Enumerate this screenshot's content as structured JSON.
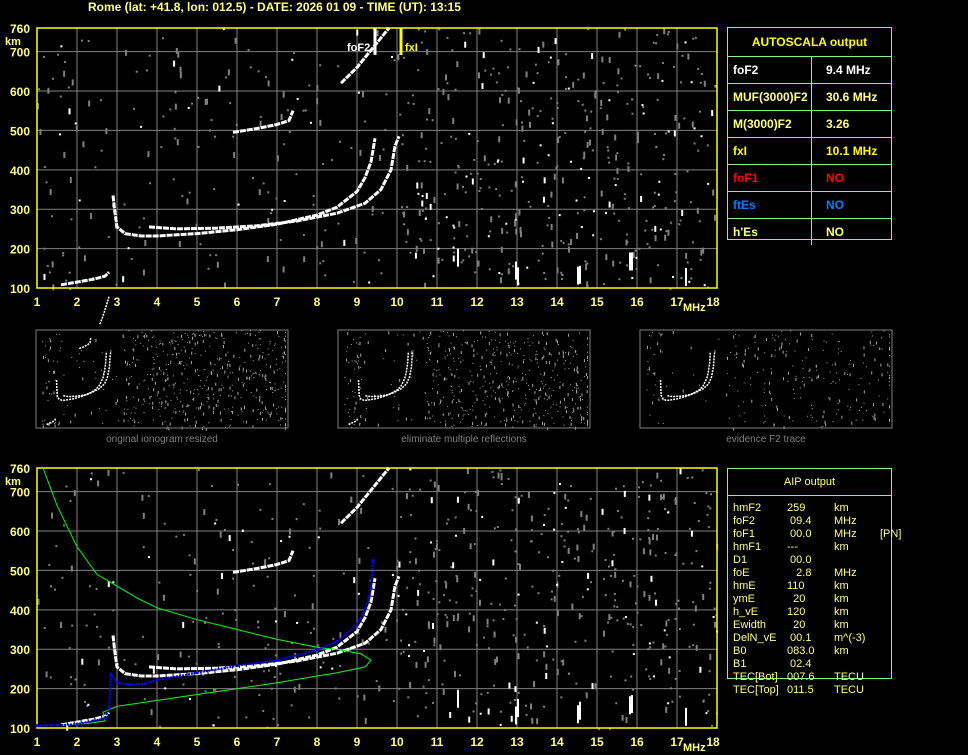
{
  "title": "Rome (lat: +41.8, lon: 012.5) - DATE: 2026 01 09 - TIME (UT): 13:15",
  "colors": {
    "axis": "#ffff00",
    "label": "#ffff80",
    "grid": "#808080",
    "echo": "#ffffff",
    "noise": "#808080",
    "table_border": "#80ff80",
    "aip_profile": "#00ff00",
    "aip_points": "#0000ff"
  },
  "autoscala": {
    "header": "AUTOSCALA output",
    "rows": [
      {
        "key": "foF2",
        "value": "9.4 MHz",
        "color": "#ffffff"
      },
      {
        "key": "MUF(3000)F2",
        "value": "30.6 MHz",
        "color": "#ffff80"
      },
      {
        "key": "M(3000)F2",
        "value": "3.26",
        "color": "#ffff80"
      },
      {
        "key": "fxI",
        "value": "10.1 MHz",
        "color": "#ffff00"
      },
      {
        "key": "foF1",
        "value": "NO",
        "color": "#ff0000"
      },
      {
        "key": "ftEs",
        "value": "NO",
        "color": "#0080ff"
      },
      {
        "key": "h'Es",
        "value": "NO",
        "color": "#ffff80"
      }
    ]
  },
  "aip": {
    "header": "AIP output",
    "rows": [
      [
        "hmF2",
        "259",
        "km",
        ""
      ],
      [
        "foF2",
        " 09.4",
        "MHz",
        ""
      ],
      [
        "foF1",
        " 00.0",
        "MHz",
        "[PN]"
      ],
      [
        "hmF1",
        "---",
        "km",
        ""
      ],
      [
        "D1",
        " 00.0",
        "",
        ""
      ],
      [
        "foE",
        "   2.8",
        "MHz",
        ""
      ],
      [
        "hmE",
        "110",
        "km",
        ""
      ],
      [
        "ymE",
        "  20",
        "km",
        ""
      ],
      [
        "h_vE",
        "120",
        "km",
        ""
      ],
      [
        "Ewidth",
        "  20",
        "km",
        ""
      ],
      [
        "DelN_vE",
        " 00.1",
        "m^(-3)",
        ""
      ],
      [
        "B0",
        "083.0",
        "km",
        ""
      ],
      [
        "B1",
        " 02.4",
        "",
        ""
      ],
      [
        "TEC[Bot]",
        "007.6",
        "TECU",
        ""
      ],
      [
        "TEC[Top]",
        "011.5",
        "TECU",
        ""
      ]
    ]
  },
  "thumbnails": [
    {
      "caption": "original ionogram resized"
    },
    {
      "caption": "eliminate multiple reflections"
    },
    {
      "caption": "evidence F2 trace"
    }
  ],
  "chart_data": [
    {
      "type": "scatter",
      "name": "ionogram",
      "xlabel": "MHz",
      "ylabel": "km",
      "xlim": [
        1,
        18
      ],
      "ylim": [
        100,
        760
      ],
      "xticks": [
        1,
        2,
        3,
        4,
        5,
        6,
        7,
        8,
        9,
        10,
        11,
        12,
        13,
        14,
        15,
        16,
        17,
        18
      ],
      "yticks": [
        100,
        200,
        300,
        400,
        500,
        600,
        700,
        760
      ],
      "grid": true,
      "markers": [
        {
          "label": "foF2",
          "x": 9.4,
          "color": "#ffffff"
        },
        {
          "label": "fxI",
          "x": 10.1,
          "color": "#ffff00"
        }
      ],
      "traces": [
        {
          "kind": "E",
          "points": [
            [
              1.6,
              108
            ],
            [
              2.0,
              115
            ],
            [
              2.4,
              122
            ],
            [
              2.7,
              130
            ],
            [
              2.8,
              140
            ]
          ]
        },
        {
          "kind": "F2-o",
          "points": [
            [
              2.9,
              335
            ],
            [
              2.95,
              290
            ],
            [
              3.0,
              255
            ],
            [
              3.2,
              238
            ],
            [
              3.6,
              232
            ],
            [
              4,
              232
            ],
            [
              5,
              238
            ],
            [
              6,
              248
            ],
            [
              7,
              262
            ],
            [
              8,
              285
            ],
            [
              8.5,
              305
            ],
            [
              9,
              345
            ],
            [
              9.2,
              380
            ],
            [
              9.35,
              420
            ],
            [
              9.45,
              480
            ]
          ]
        },
        {
          "kind": "F2-x",
          "points": [
            [
              3.8,
              255
            ],
            [
              4.5,
              250
            ],
            [
              5.5,
              252
            ],
            [
              6.5,
              258
            ],
            [
              7.5,
              270
            ],
            [
              8.5,
              290
            ],
            [
              9.2,
              315
            ],
            [
              9.6,
              350
            ],
            [
              9.85,
              400
            ],
            [
              9.95,
              460
            ],
            [
              10.05,
              485
            ]
          ]
        },
        {
          "kind": "2F2",
          "points": [
            [
              5.9,
              495
            ],
            [
              6.5,
              505
            ],
            [
              7,
              515
            ],
            [
              7.3,
              525
            ],
            [
              7.4,
              550
            ]
          ]
        },
        {
          "kind": "2F2-high",
          "points": [
            [
              8.6,
              620
            ],
            [
              9,
              660
            ],
            [
              9.4,
              710
            ],
            [
              9.8,
              760
            ]
          ]
        }
      ]
    },
    {
      "type": "line",
      "name": "aip",
      "xlabel": "MHz",
      "ylabel": "km",
      "xlim": [
        1,
        18
      ],
      "ylim": [
        100,
        760
      ],
      "xticks": [
        1,
        2,
        3,
        4,
        5,
        6,
        7,
        8,
        9,
        10,
        11,
        12,
        13,
        14,
        15,
        16,
        17,
        18
      ],
      "yticks": [
        100,
        200,
        300,
        400,
        500,
        600,
        700,
        760
      ],
      "grid": true,
      "series": [
        {
          "kind": "profile",
          "color": "#00ff00",
          "points": [
            [
              1.15,
              760
            ],
            [
              1.5,
              665
            ],
            [
              2,
              560
            ],
            [
              2.5,
              490
            ],
            [
              3,
              460
            ],
            [
              3.5,
              430
            ],
            [
              4,
              405
            ],
            [
              5,
              375
            ],
            [
              6,
              350
            ],
            [
              7,
              325
            ],
            [
              8,
              305
            ],
            [
              8.6,
              298
            ],
            [
              9.1,
              288
            ],
            [
              9.35,
              272
            ],
            [
              9.2,
              255
            ],
            [
              8.5,
              240
            ],
            [
              8,
              232
            ],
            [
              7,
              215
            ],
            [
              6,
              200
            ],
            [
              5,
              185
            ],
            [
              4,
              170
            ],
            [
              3,
              155
            ],
            [
              2.65,
              140
            ],
            [
              2.7,
              118
            ],
            [
              2.3,
              112
            ],
            [
              1.6,
              106
            ]
          ]
        },
        {
          "kind": "virtual-height",
          "color": "#0000ff",
          "points": [
            [
              1,
              106
            ],
            [
              1.5,
              107
            ],
            [
              2,
              110
            ],
            [
              2.4,
              118
            ],
            [
              2.7,
              125
            ],
            [
              2.8,
              150
            ],
            [
              2.85,
              235
            ],
            [
              3,
              215
            ],
            [
              3.3,
              210
            ],
            [
              3.7,
              213
            ],
            [
              4,
              222
            ],
            [
              5,
              240
            ],
            [
              6,
              258
            ],
            [
              7,
              272
            ],
            [
              8,
              298
            ],
            [
              8.5,
              320
            ],
            [
              9,
              362
            ],
            [
              9.2,
              400
            ],
            [
              9.3,
              430
            ],
            [
              9.35,
              455
            ],
            [
              9.4,
              525
            ]
          ]
        }
      ]
    }
  ]
}
